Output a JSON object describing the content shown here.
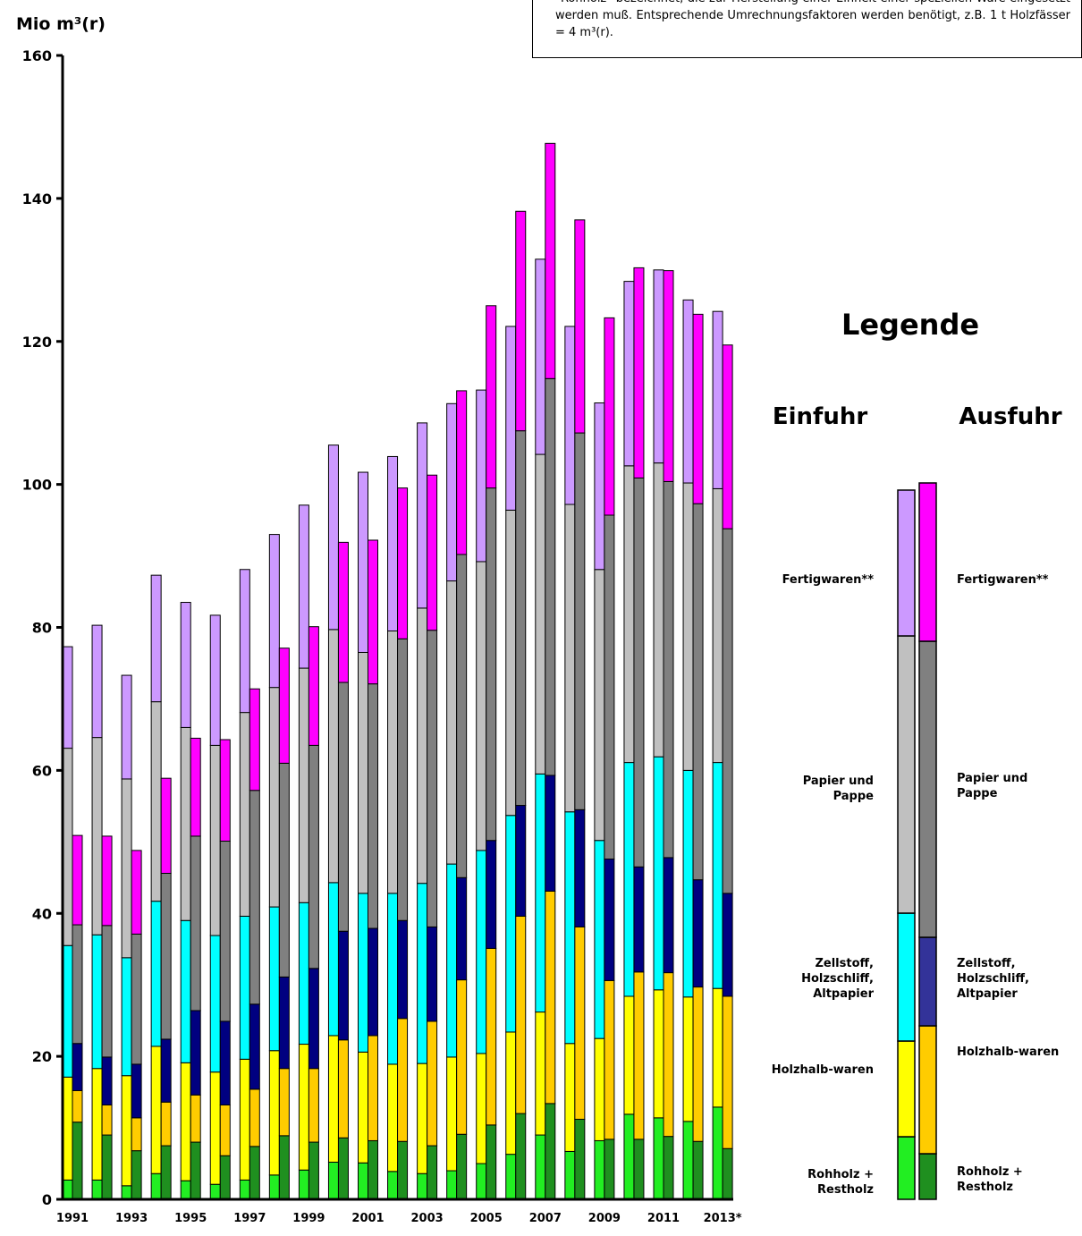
{
  "chart_data": {
    "type": "bar",
    "stacked": true,
    "note": "\"Rohholz\" bezeichnet, die zur Herstellung einer Einheit einer speziellen Ware eingesetzt werden muß. Entsprechende Umrechnungsfaktoren werden benötigt, z.B. 1 t Holzfässer = 4 m³(r).",
    "y_label": "Mio m³(r)",
    "legend_title": "Legende",
    "categories": [
      "1991",
      null,
      "1993",
      null,
      "1995",
      null,
      "1997",
      null,
      "1999",
      null,
      "2001",
      null,
      "2003",
      null,
      "2005",
      null,
      "2007",
      null,
      "2009",
      null,
      "2011",
      null,
      "2013*"
    ],
    "ylim": [
      0,
      160
    ],
    "yticks": [
      0,
      20,
      40,
      60,
      80,
      100,
      120,
      140,
      160
    ],
    "groups": [
      {
        "name": "Einfuhr",
        "series": [
          {
            "name": "Rohholz + Restholz",
            "color": "#22ee22",
            "values": [
              2.7,
              2.7,
              1.9,
              3.6,
              2.6,
              2.1,
              2.7,
              3.4,
              4.1,
              5.2,
              5.1,
              3.9,
              3.6,
              4.0,
              5.0,
              6.3,
              9.0,
              6.7,
              8.2,
              11.9,
              11.4,
              10.9,
              12.9
            ]
          },
          {
            "name": "Holzhalb-waren",
            "color": "#ffff00",
            "values": [
              14.4,
              15.6,
              15.4,
              17.8,
              16.5,
              15.7,
              16.9,
              17.4,
              17.6,
              17.7,
              15.5,
              15.0,
              15.4,
              15.9,
              15.4,
              17.1,
              17.2,
              15.1,
              14.3,
              16.5,
              17.9,
              17.4,
              16.6
            ]
          },
          {
            "name": "Zellstoff, Holzschliff, Altpapier",
            "color": "#00ffff",
            "values": [
              18.4,
              18.7,
              16.5,
              20.3,
              19.9,
              19.1,
              20.0,
              20.1,
              19.8,
              21.4,
              22.2,
              23.9,
              25.2,
              27.0,
              28.4,
              30.3,
              33.3,
              32.4,
              27.7,
              32.7,
              32.6,
              31.7,
              31.6
            ]
          },
          {
            "name": "Papier und Pappe",
            "color": "#c0c0c0",
            "values": [
              27.6,
              27.6,
              25.0,
              27.9,
              27.0,
              26.6,
              28.5,
              30.7,
              32.8,
              35.4,
              33.7,
              36.7,
              38.5,
              39.6,
              40.4,
              42.7,
              44.7,
              43.0,
              37.9,
              41.5,
              41.1,
              40.2,
              38.3
            ]
          },
          {
            "name": "Fertigwaren**",
            "color": "#cc99ff",
            "values": [
              14.2,
              15.7,
              14.5,
              17.7,
              17.5,
              18.2,
              20.0,
              21.4,
              22.8,
              25.8,
              25.2,
              24.4,
              25.9,
              24.8,
              24.0,
              25.7,
              27.3,
              24.9,
              23.3,
              25.8,
              27.0,
              25.6,
              24.8
            ]
          }
        ]
      },
      {
        "name": "Ausfuhr",
        "series": [
          {
            "name": "Rohholz + Restholz",
            "color": "#1f8f1f",
            "values": [
              10.8,
              9.0,
              6.8,
              7.5,
              8.0,
              6.1,
              7.4,
              8.9,
              8.0,
              8.6,
              8.2,
              8.1,
              7.5,
              9.1,
              10.4,
              12.0,
              13.4,
              11.2,
              8.4,
              8.4,
              8.8,
              8.1,
              7.1
            ]
          },
          {
            "name": "Holzhalb-waren",
            "color": "#ffcc00",
            "values": [
              4.4,
              4.2,
              4.6,
              6.1,
              6.6,
              7.1,
              8.0,
              9.4,
              10.3,
              13.7,
              14.7,
              17.2,
              17.4,
              21.6,
              24.7,
              27.6,
              29.7,
              26.9,
              22.2,
              23.4,
              22.9,
              21.6,
              21.3
            ]
          },
          {
            "name": "Zellstoff, Holzschliff, Altpapier",
            "color": "#000080",
            "values": [
              6.6,
              6.7,
              7.5,
              8.8,
              11.8,
              11.7,
              11.9,
              12.8,
              14.0,
              15.2,
              15.0,
              13.7,
              13.2,
              14.3,
              15.1,
              15.5,
              16.2,
              16.4,
              17.0,
              14.7,
              16.1,
              15.0,
              14.4
            ]
          },
          {
            "name": "Papier und Pappe",
            "color": "#808080",
            "values": [
              16.6,
              18.4,
              18.2,
              23.2,
              24.4,
              25.2,
              29.9,
              29.9,
              31.2,
              34.8,
              34.2,
              39.4,
              41.5,
              45.2,
              49.3,
              52.4,
              55.5,
              52.7,
              48.1,
              54.4,
              52.6,
              52.6,
              51.0
            ]
          },
          {
            "name": "Fertigwaren**",
            "color": "#ff00ff",
            "values": [
              12.5,
              12.5,
              11.7,
              13.3,
              13.7,
              14.2,
              14.2,
              16.1,
              16.6,
              19.6,
              20.1,
              21.1,
              21.7,
              22.9,
              25.5,
              30.7,
              32.9,
              29.8,
              27.6,
              29.4,
              29.5,
              26.5,
              25.7
            ]
          }
        ]
      }
    ]
  }
}
